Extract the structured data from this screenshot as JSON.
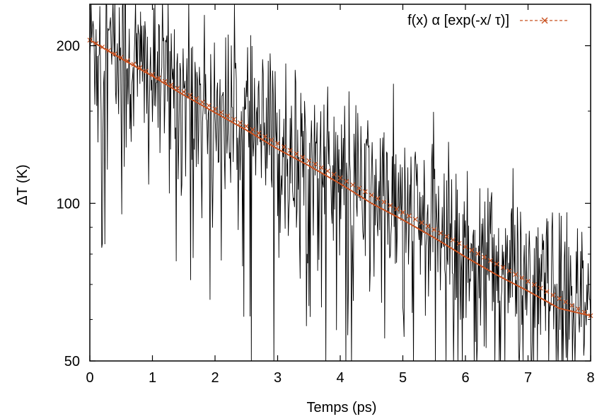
{
  "chart_data": {
    "type": "line",
    "title": "",
    "xlabel": "Temps (ps)",
    "ylabel": "ΔT (K)",
    "xlim": [
      0,
      8
    ],
    "ylim": [
      50,
      240
    ],
    "y_scale": "log",
    "grid": false,
    "legend_position": "top-right",
    "x_ticks": [
      {
        "value": 0,
        "label": "0"
      },
      {
        "value": 1,
        "label": "1"
      },
      {
        "value": 2,
        "label": "2"
      },
      {
        "value": 3,
        "label": "3"
      },
      {
        "value": 4,
        "label": "4"
      },
      {
        "value": 5,
        "label": "5"
      },
      {
        "value": 6,
        "label": "6"
      },
      {
        "value": 7,
        "label": "7"
      },
      {
        "value": 8,
        "label": "8"
      }
    ],
    "y_ticks": [
      {
        "value": 50,
        "label": "50"
      },
      {
        "value": 100,
        "label": "100"
      },
      {
        "value": 200,
        "label": "200"
      }
    ],
    "series": [
      {
        "name": "",
        "kind": "noisy-data",
        "color": "#000000",
        "x_start": 0,
        "x_end": 8,
        "x_step": 0.01,
        "trend_y0": 205,
        "trend_y_end": 61,
        "relative_noise": 0.22
      },
      {
        "name": "f(x) α [exp(-x/ τ)]",
        "kind": "fit",
        "color": "#c8501e",
        "marker": "x",
        "x": [
          0,
          0.5,
          1,
          1.5,
          2,
          2.5,
          3,
          3.5,
          4,
          4.5,
          5,
          5.5,
          6,
          6.5,
          7,
          7.5,
          8
        ],
        "y": [
          205,
          189,
          175,
          161,
          149,
          138,
          127,
          118,
          109,
          100,
          93,
          86,
          79,
          73,
          68,
          63,
          61
        ]
      }
    ]
  }
}
